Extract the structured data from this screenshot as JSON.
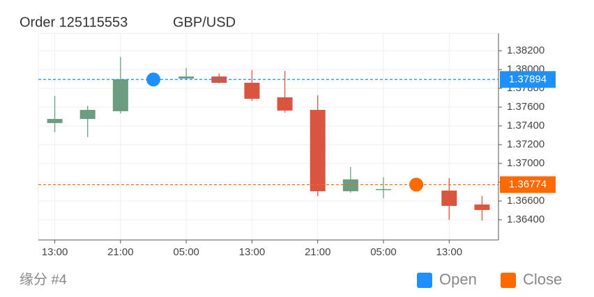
{
  "chart_data": {
    "type": "candlestick",
    "title": "Order 125115553",
    "subtitle": "GBP/USD",
    "footer": "缘分 #4",
    "categories": [
      "13:00",
      null,
      "21:00",
      null,
      "05:00",
      null,
      "13:00",
      null,
      "21:00",
      null,
      "05:00",
      null,
      "13:00",
      null
    ],
    "open": [
      1.3743,
      1.37474,
      1.37556,
      null,
      1.37904,
      1.37926,
      1.37859,
      1.37704,
      1.3757,
      1.36704,
      1.36726,
      null,
      1.36711,
      1.36563
    ],
    "high": [
      1.37719,
      1.37615,
      1.38133,
      null,
      1.38015,
      1.37956,
      1.37993,
      1.37985,
      1.37726,
      1.36963,
      1.36852,
      null,
      1.36844,
      1.36652
    ],
    "low": [
      1.37333,
      1.37281,
      1.37533,
      null,
      1.37889,
      1.37852,
      1.37667,
      1.37541,
      1.36652,
      1.36689,
      1.3663,
      null,
      1.364,
      1.36393
    ],
    "close": [
      1.37474,
      1.3757,
      1.37896,
      null,
      1.37926,
      1.37859,
      1.37689,
      1.37563,
      1.36704,
      1.3683,
      1.36727,
      null,
      1.36548,
      1.36504
    ],
    "up_color": "#6b9e80",
    "down_color": "#d9553f",
    "series": [
      {
        "name": "Open",
        "color": "#1e8fff",
        "values": [
          null,
          null,
          null,
          1.37894,
          null,
          null,
          null,
          null,
          null,
          null,
          null,
          null,
          null,
          null
        ]
      },
      {
        "name": "Close",
        "color": "#ff6a00",
        "values": [
          null,
          null,
          null,
          null,
          null,
          null,
          null,
          null,
          null,
          null,
          null,
          1.36774,
          null,
          null
        ]
      }
    ],
    "ylim": [
      1.36185,
      1.38385
    ],
    "yticks": [
      {
        "value": 1.364,
        "label": "1.36400"
      },
      {
        "value": 1.366,
        "label": "1.36600"
      },
      {
        "value": 1.368,
        "label": "1.36800"
      },
      {
        "value": 1.37,
        "label": "1.37000"
      },
      {
        "value": 1.372,
        "label": "1.37200"
      },
      {
        "value": 1.374,
        "label": "1.37400"
      },
      {
        "value": 1.376,
        "label": "1.37600"
      },
      {
        "value": 1.378,
        "label": "1.37800"
      },
      {
        "value": 1.38,
        "label": "1.38000"
      },
      {
        "value": 1.382,
        "label": "1.38200"
      }
    ],
    "grid": true,
    "legend_position": "bottom-right"
  }
}
